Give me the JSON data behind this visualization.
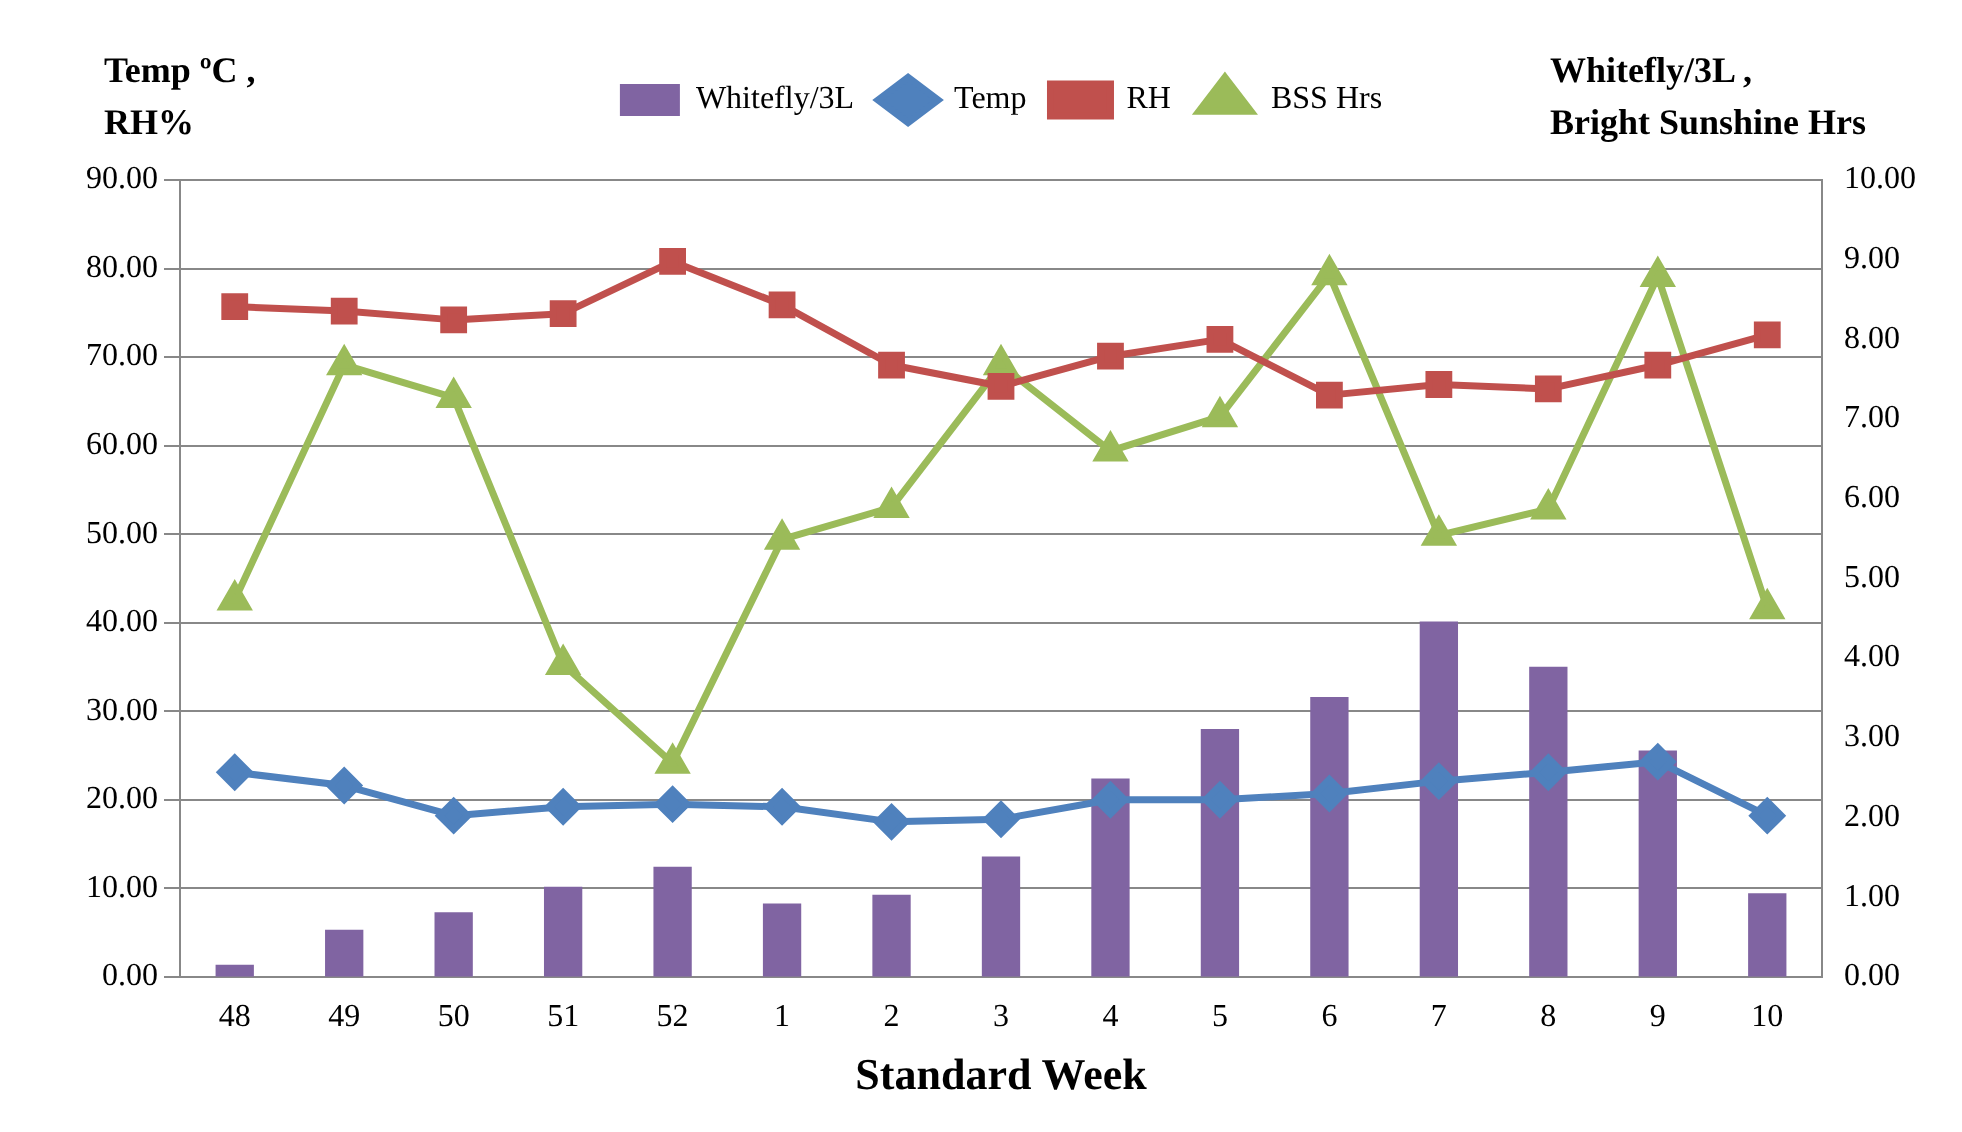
{
  "chart_data": {
    "type": "bar",
    "xlabel": "Standard Week",
    "ylabel": "Temp ºC ,\nRH%",
    "y2label": "Whitefly/3L ,\nBright Sunshine Hrs",
    "categories": [
      "48",
      "49",
      "50",
      "51",
      "52",
      "1",
      "2",
      "3",
      "4",
      "5",
      "6",
      "7",
      "8",
      "9",
      "10"
    ],
    "series": [
      {
        "name": "Whitefly/3L",
        "axis": "y2",
        "color": "#8064a2",
        "values": [
          0.15,
          0.59,
          0.81,
          1.13,
          1.38,
          0.92,
          1.03,
          1.51,
          2.49,
          3.11,
          3.51,
          4.46,
          3.89,
          2.84,
          1.05
        ]
      },
      {
        "name": "Temp",
        "type": "line",
        "marker": "diamond",
        "color": "#4f81bd",
        "values": [
          23.1,
          21.6,
          18.2,
          19.2,
          19.5,
          19.2,
          17.5,
          17.8,
          20.0,
          20.0,
          20.7,
          22.1,
          23.1,
          24.3,
          18.2
        ]
      },
      {
        "name": "RH",
        "type": "line",
        "marker": "square",
        "color": "#c0504d",
        "values": [
          75.7,
          75.2,
          74.2,
          74.9,
          80.8,
          75.9,
          69.1,
          66.7,
          70.1,
          72.0,
          65.7,
          66.9,
          66.4,
          69.1,
          72.5
        ]
      },
      {
        "name": "BSS Hrs",
        "type": "line",
        "marker": "triangle",
        "axis": "y2",
        "color": "#9bbb59",
        "values": [
          4.73,
          7.68,
          7.27,
          3.92,
          2.68,
          5.49,
          5.89,
          7.68,
          6.6,
          7.03,
          8.81,
          5.54,
          5.87,
          8.79,
          4.62
        ]
      }
    ],
    "ylim": [
      0,
      90
    ],
    "yticks": [
      {
        "value": 0,
        "label": "0.00"
      },
      {
        "value": 10,
        "label": "10.00"
      },
      {
        "value": 20,
        "label": "20.00"
      },
      {
        "value": 30,
        "label": "30.00"
      },
      {
        "value": 40,
        "label": "40.00"
      },
      {
        "value": 50,
        "label": "50.00"
      },
      {
        "value": 60,
        "label": "60.00"
      },
      {
        "value": 70,
        "label": "70.00"
      },
      {
        "value": 80,
        "label": "80.00"
      },
      {
        "value": 90,
        "label": "90.00"
      }
    ],
    "y2lim": [
      0,
      10
    ],
    "y2ticks": [
      {
        "value": 0,
        "label": "0.00"
      },
      {
        "value": 1,
        "label": "1.00"
      },
      {
        "value": 2,
        "label": "2.00"
      },
      {
        "value": 3,
        "label": "3.00"
      },
      {
        "value": 4,
        "label": "4.00"
      },
      {
        "value": 5,
        "label": "5.00"
      },
      {
        "value": 6,
        "label": "6.00"
      },
      {
        "value": 7,
        "label": "7.00"
      },
      {
        "value": 8,
        "label": "8.00"
      },
      {
        "value": 9,
        "label": "9.00"
      },
      {
        "value": 10,
        "label": "10.00"
      }
    ],
    "grid": "y",
    "legend": "top",
    "line_style": "solid"
  }
}
